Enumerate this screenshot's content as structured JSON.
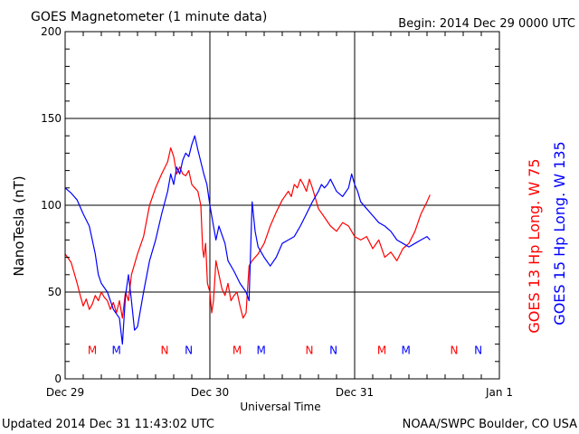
{
  "chart_data": {
    "type": "line",
    "title": "GOES Magnetometer (1 minute data)",
    "begin_label": "Begin:  2014 Dec 29 0000 UTC",
    "updated_label": "Updated 2014 Dec 31 11:43:02 UTC",
    "credit_label": "NOAA/SWPC Boulder, CO USA",
    "xlabel": "Universal Time",
    "ylabel": "NanoTesla (nT)",
    "x_unit": "hours since 2014 Dec 29 0000 UTC",
    "xlim": [
      0,
      72
    ],
    "ylim": [
      0,
      200
    ],
    "y_ticks": [
      0,
      50,
      100,
      150,
      200
    ],
    "x_ticks": [
      {
        "x": 0,
        "label": "Dec 29"
      },
      {
        "x": 24,
        "label": "Dec 30"
      },
      {
        "x": 48,
        "label": "Dec 31"
      },
      {
        "x": 72,
        "label": "Jan 1"
      }
    ],
    "grid": true,
    "colors": {
      "goes13": "#ff0000",
      "goes15": "#0000ff",
      "grid": "#000000"
    },
    "series": [
      {
        "name": "GOES 13 Hp  Long. W 75",
        "color": "#ff0000",
        "points": [
          [
            0,
            72
          ],
          [
            1,
            67
          ],
          [
            2,
            55
          ],
          [
            2.5,
            48
          ],
          [
            3,
            42
          ],
          [
            3.5,
            46
          ],
          [
            4,
            40
          ],
          [
            4.5,
            43
          ],
          [
            5,
            48
          ],
          [
            5.5,
            45
          ],
          [
            6,
            50
          ],
          [
            6.5,
            47
          ],
          [
            7,
            45
          ],
          [
            7.5,
            40
          ],
          [
            8,
            44
          ],
          [
            8.5,
            38
          ],
          [
            9,
            45
          ],
          [
            9.5,
            35
          ],
          [
            10,
            50
          ],
          [
            10.5,
            45
          ],
          [
            11,
            60
          ],
          [
            12,
            72
          ],
          [
            13,
            82
          ],
          [
            14,
            100
          ],
          [
            15,
            110
          ],
          [
            16,
            118
          ],
          [
            17,
            125
          ],
          [
            17.5,
            133
          ],
          [
            18,
            128
          ],
          [
            18.5,
            118
          ],
          [
            19,
            122
          ],
          [
            19.5,
            118
          ],
          [
            20,
            117
          ],
          [
            20.5,
            120
          ],
          [
            21,
            112
          ],
          [
            21.5,
            110
          ],
          [
            22,
            108
          ],
          [
            22.5,
            100
          ],
          [
            22.8,
            75
          ],
          [
            23,
            70
          ],
          [
            23.3,
            78
          ],
          [
            23.6,
            55
          ],
          [
            24,
            50
          ],
          [
            24.3,
            38
          ],
          [
            24.6,
            45
          ],
          [
            25,
            68
          ],
          [
            25.5,
            60
          ],
          [
            26,
            52
          ],
          [
            26.5,
            48
          ],
          [
            27,
            55
          ],
          [
            27.5,
            45
          ],
          [
            28,
            48
          ],
          [
            28.5,
            50
          ],
          [
            29,
            42
          ],
          [
            29.5,
            35
          ],
          [
            30,
            38
          ],
          [
            30.5,
            65
          ],
          [
            31,
            68
          ],
          [
            32,
            72
          ],
          [
            33,
            78
          ],
          [
            34,
            88
          ],
          [
            35,
            96
          ],
          [
            36,
            103
          ],
          [
            37,
            108
          ],
          [
            37.5,
            105
          ],
          [
            38,
            112
          ],
          [
            38.5,
            110
          ],
          [
            39,
            115
          ],
          [
            39.5,
            112
          ],
          [
            40,
            108
          ],
          [
            40.5,
            115
          ],
          [
            41,
            110
          ],
          [
            42,
            98
          ],
          [
            43,
            93
          ],
          [
            44,
            88
          ],
          [
            45,
            85
          ],
          [
            46,
            90
          ],
          [
            47,
            88
          ],
          [
            48,
            82
          ],
          [
            49,
            80
          ],
          [
            50,
            82
          ],
          [
            51,
            75
          ],
          [
            52,
            80
          ],
          [
            53,
            70
          ],
          [
            54,
            73
          ],
          [
            55,
            68
          ],
          [
            56,
            75
          ],
          [
            57,
            78
          ],
          [
            58,
            85
          ],
          [
            59,
            95
          ],
          [
            60,
            102
          ],
          [
            60.5,
            106
          ]
        ]
      },
      {
        "name": "GOES 15 Hp  Long. W 135",
        "color": "#0000ff",
        "points": [
          [
            0,
            110
          ],
          [
            1,
            107
          ],
          [
            2,
            103
          ],
          [
            3,
            95
          ],
          [
            4,
            88
          ],
          [
            5,
            72
          ],
          [
            5.5,
            60
          ],
          [
            6,
            55
          ],
          [
            7,
            50
          ],
          [
            8,
            40
          ],
          [
            9,
            35
          ],
          [
            9.5,
            20
          ],
          [
            10,
            48
          ],
          [
            10.5,
            60
          ],
          [
            11,
            45
          ],
          [
            11.5,
            28
          ],
          [
            12,
            30
          ],
          [
            13,
            50
          ],
          [
            14,
            68
          ],
          [
            15,
            80
          ],
          [
            16,
            95
          ],
          [
            17,
            108
          ],
          [
            17.5,
            118
          ],
          [
            18,
            112
          ],
          [
            18.5,
            122
          ],
          [
            19,
            118
          ],
          [
            19.5,
            126
          ],
          [
            20,
            130
          ],
          [
            20.5,
            128
          ],
          [
            21,
            135
          ],
          [
            21.5,
            140
          ],
          [
            22,
            132
          ],
          [
            22.5,
            125
          ],
          [
            23,
            118
          ],
          [
            23.5,
            112
          ],
          [
            24,
            100
          ],
          [
            24.5,
            90
          ],
          [
            25,
            80
          ],
          [
            25.5,
            88
          ],
          [
            26,
            83
          ],
          [
            26.5,
            78
          ],
          [
            27,
            68
          ],
          [
            28,
            62
          ],
          [
            29,
            55
          ],
          [
            30,
            50
          ],
          [
            30.5,
            45
          ],
          [
            31,
            102
          ],
          [
            31.5,
            85
          ],
          [
            32,
            76
          ],
          [
            33,
            70
          ],
          [
            34,
            65
          ],
          [
            35,
            70
          ],
          [
            36,
            78
          ],
          [
            37,
            80
          ],
          [
            38,
            82
          ],
          [
            39,
            88
          ],
          [
            40,
            95
          ],
          [
            41,
            102
          ],
          [
            42,
            108
          ],
          [
            42.5,
            112
          ],
          [
            43,
            110
          ],
          [
            43.5,
            112
          ],
          [
            44,
            115
          ],
          [
            45,
            108
          ],
          [
            46,
            105
          ],
          [
            47,
            110
          ],
          [
            47.5,
            118
          ],
          [
            48,
            112
          ],
          [
            48.5,
            108
          ],
          [
            49,
            102
          ],
          [
            50,
            98
          ],
          [
            51,
            94
          ],
          [
            52,
            90
          ],
          [
            53,
            88
          ],
          [
            54,
            85
          ],
          [
            55,
            80
          ],
          [
            56,
            78
          ],
          [
            57,
            76
          ],
          [
            58,
            78
          ],
          [
            59,
            80
          ],
          [
            60,
            82
          ],
          [
            60.5,
            80
          ]
        ]
      }
    ],
    "legend": [
      {
        "text": "GOES 15 Hp  Long. W 135",
        "color": "#0000ff",
        "position": "right, outermost"
      },
      {
        "text": "GOES 13 Hp  Long. W 75",
        "color": "#ff0000",
        "position": "right, inner"
      }
    ],
    "annotations": [
      {
        "text": "M",
        "x": 4.5,
        "y": 17,
        "color": "#ff0000"
      },
      {
        "text": "M",
        "x": 8.5,
        "y": 17,
        "color": "#0000ff"
      },
      {
        "text": "N",
        "x": 16.5,
        "y": 17,
        "color": "#ff0000"
      },
      {
        "text": "N",
        "x": 20.5,
        "y": 17,
        "color": "#0000ff"
      },
      {
        "text": "M",
        "x": 28.5,
        "y": 17,
        "color": "#ff0000"
      },
      {
        "text": "M",
        "x": 32.5,
        "y": 17,
        "color": "#0000ff"
      },
      {
        "text": "N",
        "x": 40.5,
        "y": 17,
        "color": "#ff0000"
      },
      {
        "text": "N",
        "x": 44.5,
        "y": 17,
        "color": "#0000ff"
      },
      {
        "text": "M",
        "x": 52.5,
        "y": 17,
        "color": "#ff0000"
      },
      {
        "text": "M",
        "x": 56.5,
        "y": 17,
        "color": "#0000ff"
      },
      {
        "text": "N",
        "x": 64.5,
        "y": 17,
        "color": "#ff0000"
      },
      {
        "text": "N",
        "x": 68.5,
        "y": 17,
        "color": "#0000ff"
      }
    ]
  }
}
